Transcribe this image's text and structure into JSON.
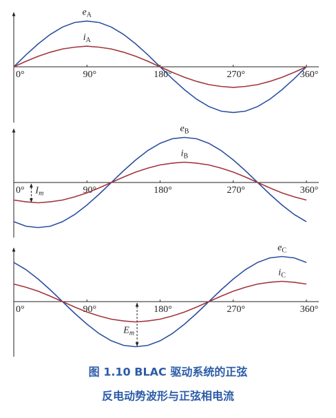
{
  "chart_data": [
    {
      "type": "line",
      "x": [
        0,
        15,
        30,
        45,
        60,
        75,
        90,
        105,
        120,
        135,
        150,
        165,
        180,
        195,
        210,
        225,
        240,
        255,
        270,
        285,
        300,
        315,
        330,
        345,
        360
      ],
      "xlim": [
        0,
        360
      ],
      "xticks": [
        {
          "value": 0,
          "label": "0°"
        },
        {
          "value": 90,
          "label": "90°"
        },
        {
          "value": 180,
          "label": "180°"
        },
        {
          "value": 270,
          "label": "270°"
        },
        {
          "value": 360,
          "label": "360°"
        }
      ],
      "ylim": [
        -1.1,
        1.1
      ],
      "series": [
        {
          "name": "eA",
          "color": "#2b4fa0",
          "values": [
            0,
            0.26,
            0.5,
            0.71,
            0.87,
            0.97,
            1,
            0.97,
            0.87,
            0.71,
            0.5,
            0.26,
            0,
            -0.26,
            -0.5,
            -0.71,
            -0.87,
            -0.97,
            -1,
            -0.97,
            -0.87,
            -0.71,
            -0.5,
            -0.26,
            0
          ]
        },
        {
          "name": "iA",
          "color": "#a3343b",
          "values": [
            0,
            0.12,
            0.23,
            0.32,
            0.39,
            0.43,
            0.45,
            0.43,
            0.39,
            0.32,
            0.23,
            0.12,
            0,
            -0.12,
            -0.23,
            -0.32,
            -0.39,
            -0.43,
            -0.45,
            -0.43,
            -0.39,
            -0.32,
            -0.23,
            -0.12,
            0
          ]
        }
      ]
    },
    {
      "type": "line",
      "x": [
        0,
        15,
        30,
        45,
        60,
        75,
        90,
        105,
        120,
        135,
        150,
        165,
        180,
        195,
        210,
        225,
        240,
        255,
        270,
        285,
        300,
        315,
        330,
        345,
        360
      ],
      "xlim": [
        0,
        360
      ],
      "xticks": [
        {
          "value": 0,
          "label": "0°"
        },
        {
          "value": 90,
          "label": "90°"
        },
        {
          "value": 180,
          "label": "180°"
        },
        {
          "value": 270,
          "label": "270°"
        },
        {
          "value": 360,
          "label": "360°"
        }
      ],
      "ylim": [
        -1.1,
        1.1
      ],
      "annotation": "Im",
      "series": [
        {
          "name": "eB",
          "color": "#2b4fa0",
          "values": [
            -0.87,
            -0.97,
            -1,
            -0.97,
            -0.87,
            -0.71,
            -0.5,
            -0.26,
            0,
            0.26,
            0.5,
            0.71,
            0.87,
            0.97,
            1,
            0.97,
            0.87,
            0.71,
            0.5,
            0.26,
            0,
            -0.26,
            -0.5,
            -0.71,
            -0.87
          ]
        },
        {
          "name": "iB",
          "color": "#a3343b",
          "values": [
            -0.39,
            -0.43,
            -0.45,
            -0.43,
            -0.39,
            -0.32,
            -0.23,
            -0.12,
            0,
            0.12,
            0.23,
            0.32,
            0.39,
            0.43,
            0.45,
            0.43,
            0.39,
            0.32,
            0.23,
            0.12,
            0,
            -0.12,
            -0.23,
            -0.32,
            -0.39
          ]
        }
      ]
    },
    {
      "type": "line",
      "x": [
        0,
        15,
        30,
        45,
        60,
        75,
        90,
        105,
        120,
        135,
        150,
        165,
        180,
        195,
        210,
        225,
        240,
        255,
        270,
        285,
        300,
        315,
        330,
        345,
        360
      ],
      "xlim": [
        0,
        360
      ],
      "xticks": [
        {
          "value": 0,
          "label": "0°"
        },
        {
          "value": 90,
          "label": "90°"
        },
        {
          "value": 180,
          "label": "180°"
        },
        {
          "value": 270,
          "label": "270°"
        },
        {
          "value": 360,
          "label": "360°"
        }
      ],
      "ylim": [
        -1.1,
        1.1
      ],
      "annotation": "Em",
      "caption": [
        "图 1.10   BLAC 驱动系统的正弦",
        "反电动势波形与正弦相电流"
      ],
      "series": [
        {
          "name": "eC",
          "color": "#2b4fa0",
          "values": [
            0.87,
            0.71,
            0.5,
            0.26,
            0,
            -0.26,
            -0.5,
            -0.71,
            -0.87,
            -0.97,
            -1,
            -0.97,
            -0.87,
            -0.71,
            -0.5,
            -0.26,
            0,
            0.26,
            0.5,
            0.71,
            0.87,
            0.97,
            1,
            0.97,
            0.87
          ]
        },
        {
          "name": "iC",
          "color": "#a3343b",
          "values": [
            0.39,
            0.32,
            0.23,
            0.12,
            0,
            -0.12,
            -0.23,
            -0.32,
            -0.39,
            -0.43,
            -0.45,
            -0.43,
            -0.39,
            -0.32,
            -0.23,
            -0.12,
            0,
            0.12,
            0.23,
            0.32,
            0.39,
            0.43,
            0.45,
            0.43,
            0.39
          ]
        }
      ]
    }
  ]
}
